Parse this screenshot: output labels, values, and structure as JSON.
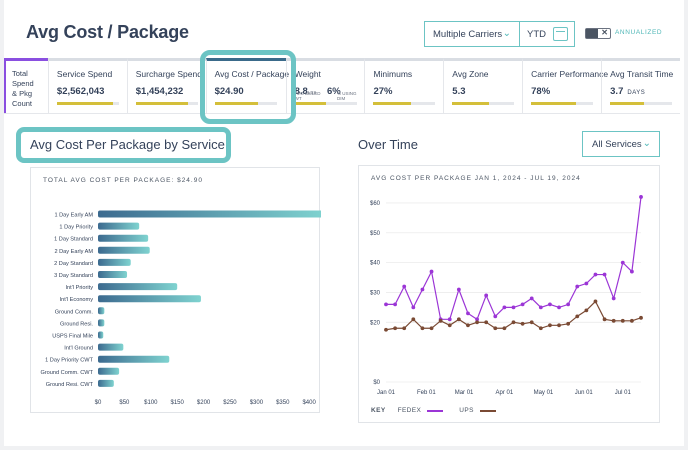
{
  "header": {
    "title": "Avg Cost / Package",
    "carrier_select": "Multiple Carriers",
    "date_select": "YTD",
    "annualized_label": "ANNUALIZED"
  },
  "kpis": {
    "first_label_lines": [
      "Total",
      "Spend",
      "& Pkg",
      "Count"
    ],
    "items": [
      {
        "label": "Service Spend",
        "value": "$2,562,043",
        "fill": 0.9
      },
      {
        "label": "Surcharge Spend",
        "value": "$1,454,232",
        "fill": 0.85
      },
      {
        "label": "Avg Cost / Package",
        "value": "$24.90",
        "fill": 0.7
      },
      {
        "label": "Weight",
        "value": "8.8",
        "value_unit": "LBS",
        "value_sub": "AVG BILLED WT",
        "value2": "6%",
        "value2_sub": "% USING DIM",
        "fill": 0.5
      },
      {
        "label": "Minimums",
        "value": "27%",
        "fill": 0.6
      },
      {
        "label": "Avg Zone",
        "value": "5.3",
        "fill": 0.6
      },
      {
        "label": "Carrier Performance",
        "value": "78%",
        "fill": 0.72
      },
      {
        "label": "Avg Transit Time",
        "value": "3.7",
        "value_unit": "DAYS",
        "fill": 0.55
      }
    ]
  },
  "left_section": {
    "heading": "Avg Cost Per Package by Service",
    "panel_title": "TOTAL AVG COST PER PACKAGE: $24.90"
  },
  "right_section": {
    "heading": "Over Time",
    "filter": "All Services",
    "panel_title": "AVG COST PER PACKAGE JAN 1, 2024 - JUL 19, 2024",
    "key_label": "KEY"
  },
  "colors": {
    "accent": "#6cc4c4",
    "bar_start": "#3c6a8f",
    "bar_end": "#7fd3d0",
    "fedex": "#9b35d6",
    "ups": "#7a4a34",
    "kpi_fill": "#d4bf3a"
  },
  "icons": [
    "chevron-down-icon",
    "calendar-icon",
    "toggle-switch"
  ],
  "chart_data": [
    {
      "type": "bar",
      "orientation": "horizontal",
      "categories": [
        "1 Day Early AM",
        "1 Day Priority",
        "1 Day Standard",
        "2 Day Early AM",
        "2 Day Standard",
        "3 Day Standard",
        "Int'l Priority",
        "Int'l Economy",
        "Ground Comm.",
        "Ground Resi.",
        "USPS Final Mile",
        "Int'l Ground",
        "1 Day Priority CWT",
        "Ground Comm. CWT",
        "Ground Resi. CWT"
      ],
      "values": [
        430,
        78,
        95,
        98,
        62,
        55,
        150,
        195,
        12,
        12,
        10,
        48,
        135,
        40,
        30
      ],
      "xticks": [
        0,
        50,
        100,
        150,
        200,
        250,
        300,
        350,
        400
      ],
      "xticklabels": [
        "$0",
        "$50",
        "$100",
        "$150",
        "$200",
        "$250",
        "$300",
        "$350",
        "$400"
      ],
      "xlim": [
        0,
        430
      ]
    },
    {
      "type": "line",
      "x": [
        "2024-01-01",
        "2024-01-08",
        "2024-01-15",
        "2024-01-22",
        "2024-01-29",
        "2024-02-05",
        "2024-02-12",
        "2024-02-19",
        "2024-02-26",
        "2024-03-04",
        "2024-03-11",
        "2024-03-18",
        "2024-03-25",
        "2024-04-01",
        "2024-04-08",
        "2024-04-15",
        "2024-04-22",
        "2024-04-29",
        "2024-05-06",
        "2024-05-13",
        "2024-05-20",
        "2024-05-27",
        "2024-06-03",
        "2024-06-10",
        "2024-06-17",
        "2024-06-24",
        "2024-07-01",
        "2024-07-08",
        "2024-07-15"
      ],
      "series": [
        {
          "name": "FEDEX",
          "values": [
            26,
            26,
            32,
            25,
            31,
            37,
            21,
            21,
            31,
            23,
            21,
            29,
            22,
            25,
            25,
            26,
            28,
            25,
            26,
            25,
            26,
            32,
            33,
            36,
            36,
            28,
            40,
            37,
            62
          ]
        },
        {
          "name": "UPS",
          "values": [
            17.5,
            18,
            18,
            21,
            18,
            18,
            20.5,
            19,
            21,
            19,
            20,
            20,
            18,
            18,
            20,
            19.5,
            20,
            18,
            19,
            19,
            19.5,
            22,
            24,
            27,
            21,
            20.5,
            20.5,
            20.5,
            21.5
          ]
        }
      ],
      "xticklabels": [
        "Jan 01",
        "Feb 01",
        "Mar 01",
        "Apr 01",
        "May 01",
        "Jun 01",
        "Jul 01"
      ],
      "yticks": [
        0,
        20,
        30,
        40,
        50,
        60
      ],
      "yticklabels": [
        "$0",
        "$20",
        "$30",
        "$40",
        "$50",
        "$60"
      ],
      "ylim": [
        0,
        65
      ],
      "legend": "bottom-left"
    }
  ]
}
